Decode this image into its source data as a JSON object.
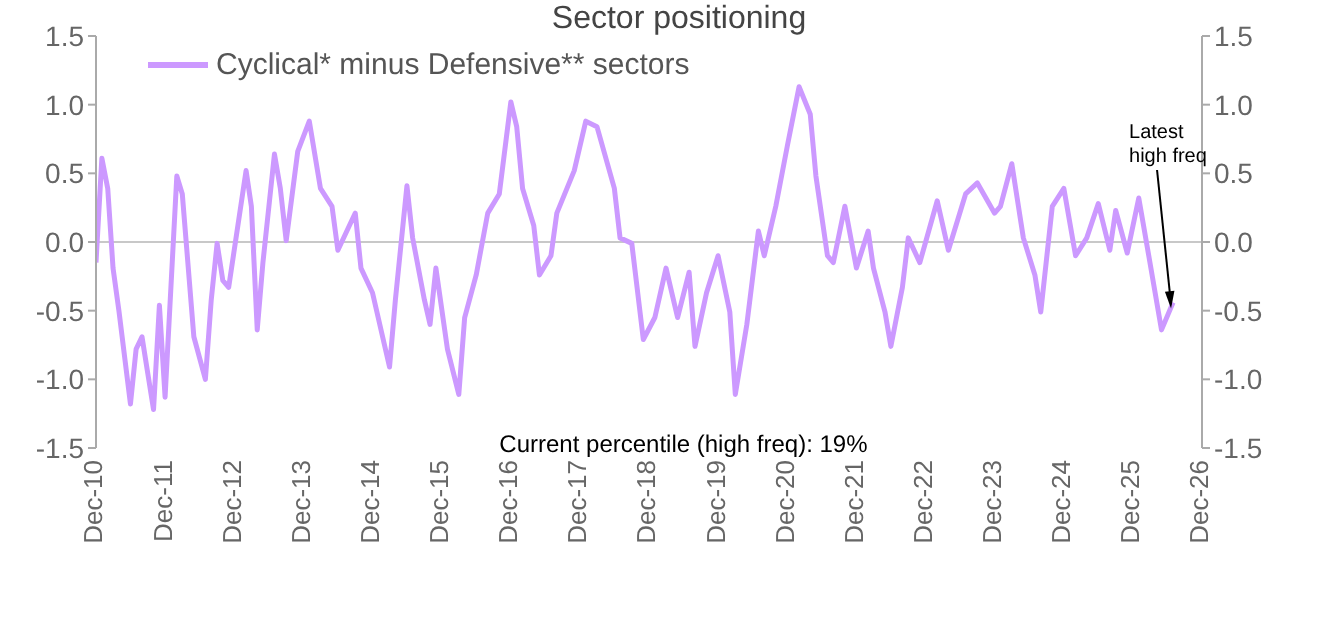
{
  "chart_data": {
    "type": "line",
    "title": "Sector positioning",
    "x": [
      "2010-12",
      "2011-01",
      "2011-02",
      "2011-03",
      "2011-04",
      "2011-06",
      "2011-07",
      "2011-08",
      "2011-09",
      "2011-10",
      "2011-11",
      "2011-12",
      "2012-02",
      "2012-03",
      "2012-05",
      "2012-07",
      "2012-08",
      "2012-09",
      "2012-10",
      "2012-11",
      "2013-02",
      "2013-03",
      "2013-04",
      "2013-05",
      "2013-07",
      "2013-08",
      "2013-09",
      "2013-11",
      "2014-01",
      "2014-03",
      "2014-05",
      "2014-06",
      "2014-08",
      "2014-09",
      "2014-10",
      "2014-12",
      "2015-03",
      "2015-04",
      "2015-06",
      "2015-07",
      "2015-09",
      "2015-10",
      "2015-11",
      "2016-01",
      "2016-03",
      "2016-04",
      "2016-06",
      "2016-08",
      "2016-10",
      "2016-12",
      "2017-01",
      "2017-02",
      "2017-04",
      "2017-05",
      "2017-07",
      "2017-08",
      "2017-11",
      "2018-01",
      "2018-03",
      "2018-06",
      "2018-07",
      "2018-09",
      "2018-11",
      "2019-01",
      "2019-03",
      "2019-05",
      "2019-07",
      "2019-08",
      "2019-10",
      "2019-12",
      "2020-02",
      "2020-03",
      "2020-05",
      "2020-07",
      "2020-08",
      "2020-10",
      "2020-12",
      "2021-02",
      "2021-04",
      "2021-05",
      "2021-07",
      "2021-08",
      "2021-10",
      "2021-12",
      "2022-02",
      "2022-03",
      "2022-05",
      "2022-06",
      "2022-08",
      "2022-09",
      "2022-11",
      "2023-02",
      "2023-04",
      "2023-07",
      "2023-09",
      "2023-12",
      "2024-01",
      "2024-03",
      "2024-05",
      "2024-07",
      "2024-08",
      "2024-10",
      "2024-12",
      "2025-02",
      "2025-04",
      "2025-06",
      "2025-08",
      "2025-09",
      "2025-11",
      "2026-01",
      "2026-03",
      "2026-05",
      "2026-07"
    ],
    "series": [
      {
        "name": "Cyclical* minus Defensive** sectors",
        "color": "#cc99ff",
        "values": [
          -0.15,
          0.61,
          0.39,
          -0.19,
          -0.5,
          -1.18,
          -0.78,
          -0.69,
          -0.96,
          -1.22,
          -0.46,
          -1.13,
          0.48,
          0.35,
          -0.69,
          -1.0,
          -0.42,
          -0.01,
          -0.28,
          -0.33,
          0.52,
          0.26,
          -0.64,
          -0.15,
          0.64,
          0.39,
          0.01,
          0.66,
          0.88,
          0.39,
          0.26,
          -0.06,
          0.12,
          0.21,
          -0.19,
          -0.37,
          -0.91,
          -0.42,
          0.41,
          0.03,
          -0.42,
          -0.6,
          -0.19,
          -0.78,
          -1.11,
          -0.55,
          -0.24,
          0.21,
          0.35,
          1.02,
          0.84,
          0.39,
          0.12,
          -0.24,
          -0.1,
          0.21,
          0.52,
          0.88,
          0.84,
          0.39,
          0.03,
          -0.01,
          -0.71,
          -0.55,
          -0.19,
          -0.55,
          -0.22,
          -0.76,
          -0.37,
          -0.1,
          -0.51,
          -1.11,
          -0.6,
          0.08,
          -0.1,
          0.26,
          0.7,
          1.13,
          0.93,
          0.48,
          -0.1,
          -0.15,
          0.26,
          -0.19,
          0.08,
          -0.19,
          -0.51,
          -0.76,
          -0.33,
          0.03,
          -0.15,
          0.3,
          -0.06,
          0.35,
          0.43,
          0.21,
          0.26,
          0.57,
          0.03,
          -0.24,
          -0.51,
          0.26,
          0.39,
          -0.1,
          0.03,
          0.28,
          -0.06,
          0.23,
          -0.08,
          0.32,
          -0.15,
          -0.64,
          -0.44
        ]
      }
    ],
    "xlim": [
      "2010-12",
      "2026-12"
    ],
    "xticks": [
      {
        "value": "2010-12",
        "label": "Dec-10"
      },
      {
        "value": "2011-12",
        "label": "Dec-11"
      },
      {
        "value": "2012-12",
        "label": "Dec-12"
      },
      {
        "value": "2013-12",
        "label": "Dec-13"
      },
      {
        "value": "2014-12",
        "label": "Dec-14"
      },
      {
        "value": "2015-12",
        "label": "Dec-15"
      },
      {
        "value": "2016-12",
        "label": "Dec-16"
      },
      {
        "value": "2017-12",
        "label": "Dec-17"
      },
      {
        "value": "2018-12",
        "label": "Dec-18"
      },
      {
        "value": "2019-12",
        "label": "Dec-19"
      },
      {
        "value": "2020-12",
        "label": "Dec-20"
      },
      {
        "value": "2021-12",
        "label": "Dec-21"
      },
      {
        "value": "2022-12",
        "label": "Dec-22"
      },
      {
        "value": "2023-12",
        "label": "Dec-23"
      },
      {
        "value": "2024-12",
        "label": "Dec-24"
      },
      {
        "value": "2025-12",
        "label": "Dec-25"
      },
      {
        "value": "2026-12",
        "label": "Dec-26"
      }
    ],
    "ylim": [
      -1.5,
      1.5
    ],
    "yticks": [
      {
        "value": 1.5,
        "label": "1.5"
      },
      {
        "value": 1,
        "label": "1.0"
      },
      {
        "value": 0.5,
        "label": "0.5"
      },
      {
        "value": 0,
        "label": "0.0"
      },
      {
        "value": -0.5,
        "label": "-0.5"
      },
      {
        "value": -1,
        "label": "-1.0"
      },
      {
        "value": -1.5,
        "label": "-1.5"
      }
    ],
    "y2lim": [
      -1.5,
      1.5
    ],
    "y2ticks": [
      {
        "value": 1.5,
        "label": "1.5"
      },
      {
        "value": 1,
        "label": "1.0"
      },
      {
        "value": 0.5,
        "label": "0.5"
      },
      {
        "value": 0,
        "label": "0.0"
      },
      {
        "value": -0.5,
        "label": "-0.5"
      },
      {
        "value": -1,
        "label": "-1.0"
      },
      {
        "value": -1.5,
        "label": "-1.5"
      }
    ],
    "ref_lines": [
      {
        "axis": "y",
        "value": 0,
        "color": "#c8c8c8"
      }
    ],
    "annotations": [
      "Current percentile (high freq): 19%",
      {
        "text": "Latest high freq",
        "x": "2026-07",
        "y": -0.44
      }
    ],
    "legend": "top left",
    "grid": false,
    "marker": "none",
    "line_style": "solid"
  }
}
